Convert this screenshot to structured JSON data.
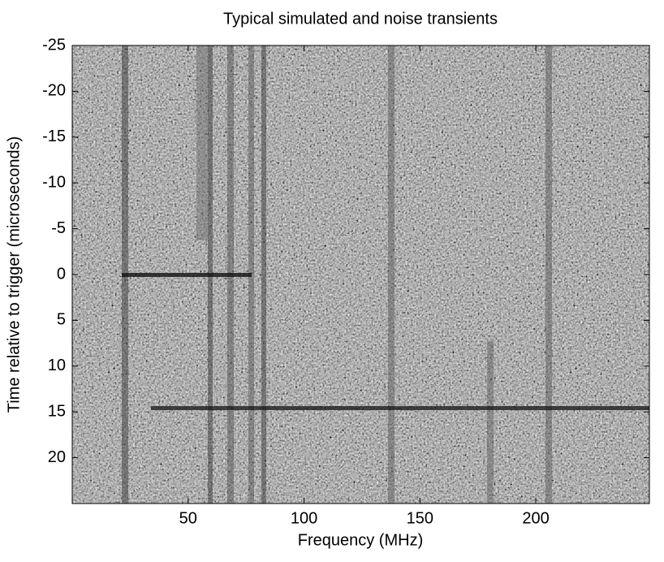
{
  "chart_data": {
    "type": "heatmap",
    "title": "Typical simulated and noise transients",
    "x_label": "Frequency  (MHz)",
    "y_label": "Time relative to trigger  (microseconds)",
    "xlim": [
      0,
      249
    ],
    "xticks": [
      50,
      100,
      150,
      200
    ],
    "ylim": [
      -25,
      25
    ],
    "yticks": [
      -25,
      -20,
      -15,
      -10,
      -5,
      0,
      5,
      10,
      15,
      20
    ],
    "y_reversed": true
  }
}
